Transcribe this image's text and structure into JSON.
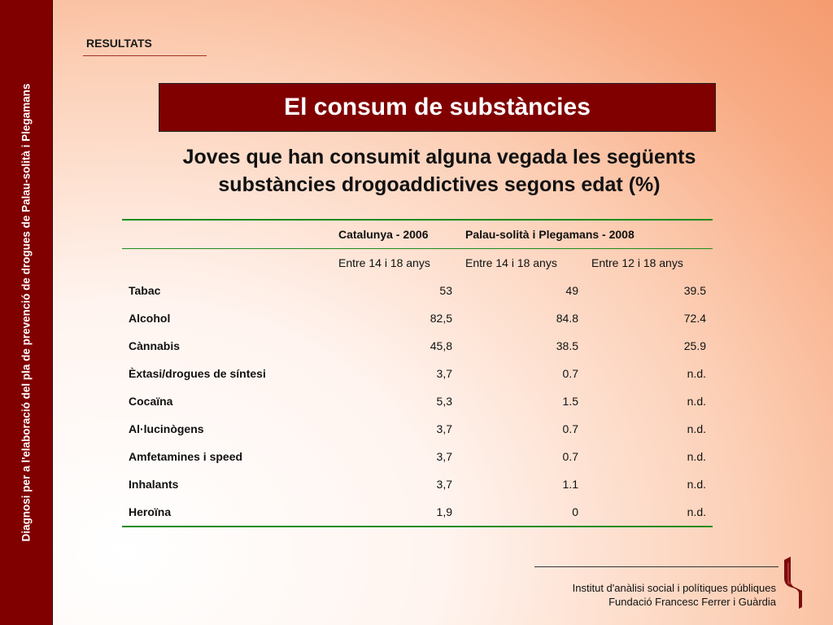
{
  "sidebar": {
    "text": "Diagnosi per a l'elaboració del pla de prevenció de drogues de Palau-solità i Plegamans"
  },
  "section": {
    "label": "RESULTATS"
  },
  "title": "El consum de substàncies",
  "subtitle": {
    "line1": "Joves que han consumit alguna vegada les següents",
    "line2": "substàncies drogoaddictives segons edat (%)"
  },
  "table": {
    "group_headers": [
      "Catalunya -  2006",
      "Palau-solità i Plegamans -  2008"
    ],
    "sub_headers": [
      "Entre 14 i 18 anys",
      "Entre 14 i 18 anys",
      "Entre 12 i 18 anys"
    ],
    "rows": [
      {
        "label": "Tabac",
        "values": [
          "53",
          "49",
          "39.5"
        ]
      },
      {
        "label": "Alcohol",
        "values": [
          "82,5",
          "84.8",
          "72.4"
        ]
      },
      {
        "label": "Cànnabis",
        "values": [
          "45,8",
          "38.5",
          "25.9"
        ]
      },
      {
        "label": "Èxtasi/drogues de síntesi",
        "values": [
          "3,7",
          "0.7",
          "n.d."
        ]
      },
      {
        "label": "Cocaïna",
        "values": [
          "5,3",
          "1.5",
          "n.d."
        ]
      },
      {
        "label": "Al·lucinògens",
        "values": [
          "3,7",
          "0.7",
          "n.d."
        ]
      },
      {
        "label": "Amfetamines i speed",
        "values": [
          "3,7",
          "0.7",
          "n.d."
        ]
      },
      {
        "label": "Inhalants",
        "values": [
          "3,7",
          "1.1",
          "n.d."
        ]
      },
      {
        "label": "Heroïna",
        "values": [
          "1,9",
          "0",
          "n.d."
        ]
      }
    ]
  },
  "footer": {
    "line1": "Institut d'anàlisi social i polítiques públiques",
    "line2": "Fundació Francesc Ferrer i Guàrdia"
  },
  "colors": {
    "sidebar": "#800000",
    "title_box": "#800000",
    "table_rule": "#1e8c1e"
  },
  "icons": {
    "logo": "institute-logo"
  }
}
